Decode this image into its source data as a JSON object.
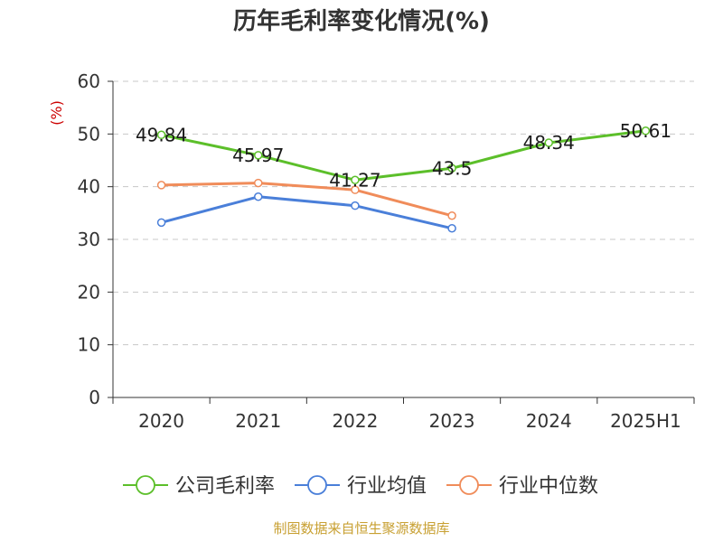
{
  "chart_data": {
    "type": "line",
    "title": "历年毛利率变化情况(%)",
    "unit_label": "(%)",
    "categories": [
      "2020",
      "2021",
      "2022",
      "2023",
      "2024",
      "2025H1"
    ],
    "ylim": [
      0,
      60
    ],
    "yticks": [
      0,
      10,
      20,
      30,
      40,
      50,
      60
    ],
    "grid": true,
    "legend_position": "bottom",
    "series": [
      {
        "name": "公司毛利率",
        "color": "#5cbf2a",
        "values": [
          49.84,
          45.97,
          41.27,
          43.5,
          48.34,
          50.61
        ],
        "labels": [
          "49.84",
          "45.97",
          "41.27",
          "43.5",
          "48.34",
          "50.61"
        ]
      },
      {
        "name": "行业均值",
        "color": "#4a7fd9",
        "values": [
          33.2,
          38.1,
          36.4,
          32.1,
          null,
          null
        ]
      },
      {
        "name": "行业中位数",
        "color": "#f08c5a",
        "values": [
          40.3,
          40.7,
          39.4,
          34.5,
          null,
          null
        ]
      }
    ]
  },
  "colors": {
    "unit": "#cc0000",
    "source": "#c8a032",
    "grid": "#c8c8c8",
    "axis": "#333333"
  },
  "source_text": "制图数据来自恒生聚源数据库"
}
